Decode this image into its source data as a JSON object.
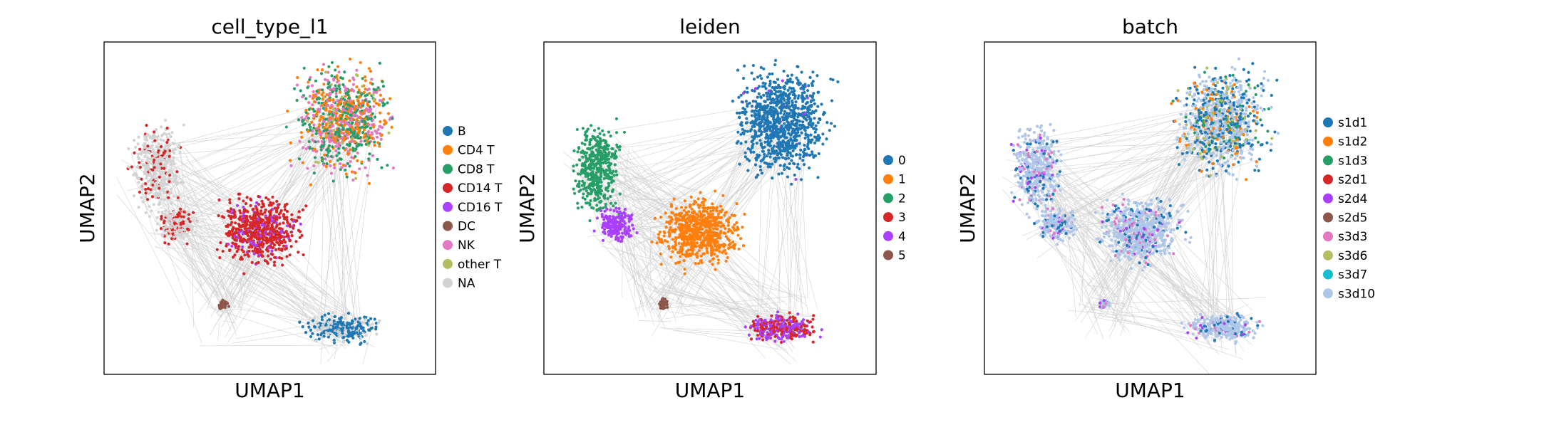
{
  "figure": {
    "background": "#ffffff",
    "edge_color": "#808080"
  },
  "chart_data": [
    {
      "type": "scatter",
      "title": "cell_type_l1",
      "xlabel": "UMAP1",
      "ylabel": "UMAP2",
      "grid": false,
      "legend_position": "right",
      "legend": [
        {
          "label": "B",
          "color": "#1f77b4"
        },
        {
          "label": "CD4 T",
          "color": "#ff7f0e"
        },
        {
          "label": "CD8 T",
          "color": "#279e68"
        },
        {
          "label": "CD14 T",
          "color": "#d62728"
        },
        {
          "label": "CD16 T",
          "color": "#aa40fc"
        },
        {
          "label": "DC",
          "color": "#8c564b"
        },
        {
          "label": "NK",
          "color": "#e377c2"
        },
        {
          "label": "other T",
          "color": "#b5bd61"
        },
        {
          "label": "NA",
          "color": "#d3d3d3"
        }
      ]
    },
    {
      "type": "scatter",
      "title": "leiden",
      "xlabel": "UMAP1",
      "ylabel": "UMAP2",
      "grid": false,
      "legend_position": "right",
      "legend": [
        {
          "label": "0",
          "color": "#1f77b4"
        },
        {
          "label": "1",
          "color": "#ff7f0e"
        },
        {
          "label": "2",
          "color": "#279e68"
        },
        {
          "label": "3",
          "color": "#d62728"
        },
        {
          "label": "4",
          "color": "#aa40fc"
        },
        {
          "label": "5",
          "color": "#8c564b"
        }
      ]
    },
    {
      "type": "scatter",
      "title": "batch",
      "xlabel": "UMAP1",
      "ylabel": "UMAP2",
      "grid": false,
      "legend_position": "right",
      "legend": [
        {
          "label": "s1d1",
          "color": "#1f77b4"
        },
        {
          "label": "s1d2",
          "color": "#ff7f0e"
        },
        {
          "label": "s1d3",
          "color": "#279e68"
        },
        {
          "label": "s2d1",
          "color": "#d62728"
        },
        {
          "label": "s2d4",
          "color": "#aa40fc"
        },
        {
          "label": "s2d5",
          "color": "#8c564b"
        },
        {
          "label": "s3d3",
          "color": "#e377c2"
        },
        {
          "label": "s3d6",
          "color": "#b5bd61"
        },
        {
          "label": "s3d7",
          "color": "#17becf"
        },
        {
          "label": "s3d10",
          "color": "#aec7e8"
        }
      ]
    }
  ]
}
